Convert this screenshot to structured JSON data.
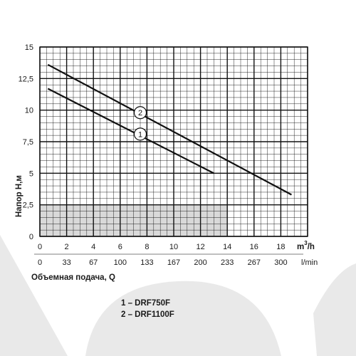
{
  "colors": {
    "grid": "#111111",
    "curve": "#111111",
    "watermark": "#e9e9e9",
    "shade": "#d9d9d9"
  },
  "chart_data": {
    "type": "line",
    "ylabel": "Напор  H,м",
    "xlabel": "Объемная подача, Q",
    "x_unit_primary": "m³/h",
    "x_unit_primary_base": "m",
    "x_unit_primary_sup": "3",
    "x_unit_primary_suffix": "/h",
    "x_unit_secondary": "l/min",
    "xlim": [
      0,
      20
    ],
    "ylim": [
      0,
      15
    ],
    "grid": true,
    "x_ticks_primary": [
      "0",
      "2",
      "4",
      "6",
      "8",
      "10",
      "12",
      "14",
      "16",
      "18"
    ],
    "x_ticks_secondary": [
      "0",
      "33",
      "67",
      "100",
      "133",
      "167",
      "200",
      "233",
      "267",
      "300"
    ],
    "y_ticks": [
      "0",
      "2,5",
      "5",
      "7,5",
      "10",
      "12,5",
      "15"
    ],
    "series": [
      {
        "name": "1",
        "x": [
          0.6,
          13
        ],
        "y": [
          11.7,
          5
        ]
      },
      {
        "name": "2",
        "x": [
          0.6,
          18.8
        ],
        "y": [
          13.6,
          3.3
        ]
      }
    ],
    "curve_markers": [
      {
        "text": "1",
        "x": 7.5,
        "y": 8.1
      },
      {
        "text": "2",
        "x": 7.5,
        "y": 9.8
      }
    ],
    "legend": [
      "1 – DRF750F",
      "2 – DRF1100F"
    ]
  }
}
